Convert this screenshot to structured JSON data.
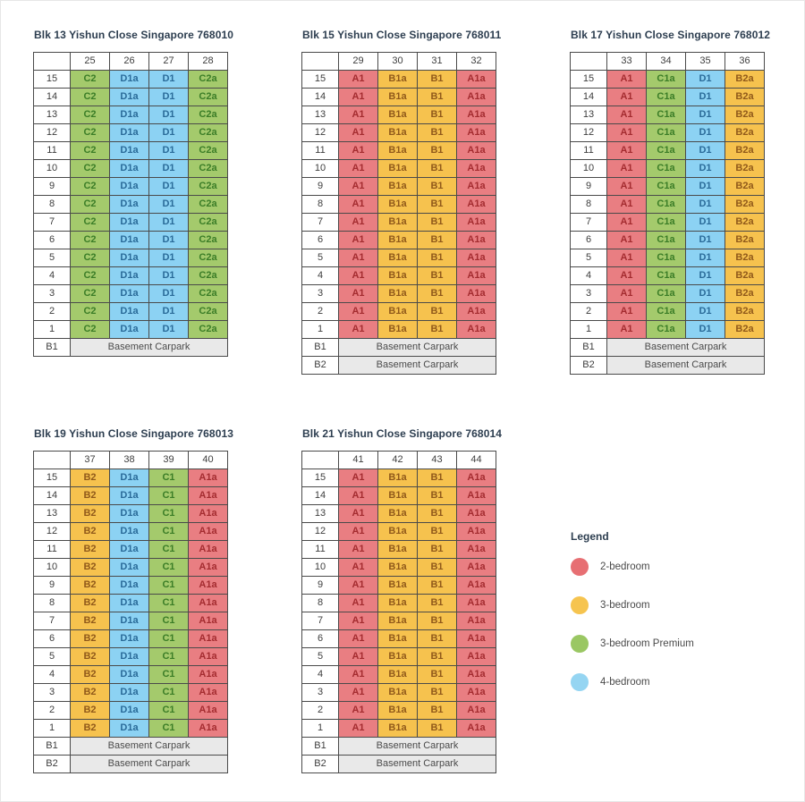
{
  "colors": {
    "title": "#2d3e50",
    "grid": "#4a4a4a",
    "cell-red-bg": "#e97e82",
    "cell-red-text": "#a42c30",
    "cell-yellow-bg": "#f6c24e",
    "cell-yellow-text": "#90591a",
    "cell-green-bg": "#a4ca6c",
    "cell-green-text": "#3b7d27",
    "cell-blue-bg": "#8cd2f3",
    "cell-blue-text": "#2a6b99",
    "basement-bg": "#e9e9e9",
    "text-dark": "#3d3d3d",
    "text-muted": "#4a4a4a"
  },
  "floors": [
    "15",
    "14",
    "13",
    "12",
    "11",
    "10",
    "9",
    "8",
    "7",
    "6",
    "5",
    "4",
    "3",
    "2",
    "1"
  ],
  "blocks": [
    {
      "title": "Blk 13 Yishun Close Singapore 768010",
      "stacks": [
        "25",
        "26",
        "27",
        "28"
      ],
      "units": [
        {
          "label": "C2",
          "type": "green"
        },
        {
          "label": "D1a",
          "type": "blue"
        },
        {
          "label": "D1",
          "type": "blue"
        },
        {
          "label": "C2a",
          "type": "green"
        }
      ],
      "basements": [
        {
          "label": "B1",
          "text": "Basement Carpark"
        }
      ]
    },
    {
      "title": "Blk 15 Yishun Close Singapore 768011",
      "stacks": [
        "29",
        "30",
        "31",
        "32"
      ],
      "units": [
        {
          "label": "A1",
          "type": "red"
        },
        {
          "label": "B1a",
          "type": "yellow"
        },
        {
          "label": "B1",
          "type": "yellow"
        },
        {
          "label": "A1a",
          "type": "red"
        }
      ],
      "basements": [
        {
          "label": "B1",
          "text": "Basement Carpark"
        },
        {
          "label": "B2",
          "text": "Basement Carpark"
        }
      ]
    },
    {
      "title": "Blk 17 Yishun Close Singapore 768012",
      "stacks": [
        "33",
        "34",
        "35",
        "36"
      ],
      "units": [
        {
          "label": "A1",
          "type": "red"
        },
        {
          "label": "C1a",
          "type": "green"
        },
        {
          "label": "D1",
          "type": "blue"
        },
        {
          "label": "B2a",
          "type": "yellow"
        }
      ],
      "basements": [
        {
          "label": "B1",
          "text": "Basement Carpark"
        },
        {
          "label": "B2",
          "text": "Basement Carpark"
        }
      ]
    },
    {
      "title": "Blk 19 Yishun Close Singapore 768013",
      "stacks": [
        "37",
        "38",
        "39",
        "40"
      ],
      "units": [
        {
          "label": "B2",
          "type": "yellow"
        },
        {
          "label": "D1a",
          "type": "blue"
        },
        {
          "label": "C1",
          "type": "green"
        },
        {
          "label": "A1a",
          "type": "red"
        }
      ],
      "basements": [
        {
          "label": "B1",
          "text": "Basement Carpark"
        },
        {
          "label": "B2",
          "text": "Basement Carpark"
        }
      ]
    },
    {
      "title": "Blk 21 Yishun Close Singapore 768014",
      "stacks": [
        "41",
        "42",
        "43",
        "44"
      ],
      "units": [
        {
          "label": "A1",
          "type": "red"
        },
        {
          "label": "B1a",
          "type": "yellow"
        },
        {
          "label": "B1",
          "type": "yellow"
        },
        {
          "label": "A1a",
          "type": "red"
        }
      ],
      "basements": [
        {
          "label": "B1",
          "text": "Basement Carpark"
        },
        {
          "label": "B2",
          "text": "Basement Carpark"
        }
      ]
    }
  ],
  "legend": {
    "title": "Legend",
    "items": [
      {
        "label": "2-bedroom",
        "type": "red",
        "color": "#e76f73"
      },
      {
        "label": "3-bedroom",
        "type": "yellow",
        "color": "#f6c44f"
      },
      {
        "label": "3-bedroom Premium",
        "type": "green",
        "color": "#9ac763"
      },
      {
        "label": "4-bedroom",
        "type": "blue",
        "color": "#95d5f2"
      }
    ]
  }
}
